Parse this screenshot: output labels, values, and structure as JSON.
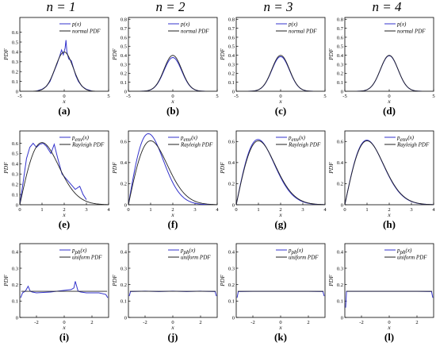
{
  "column_headers": [
    "n = 1",
    "n = 2",
    "n = 3",
    "n = 4"
  ],
  "colors": {
    "estimate": "#3333cc",
    "reference": "#222222",
    "frame": "#000000"
  },
  "chart_data": [
    {
      "type": "line",
      "panel_label": "(a)",
      "row": 0,
      "col": 0,
      "xlabel": "x",
      "ylabel": "PDF",
      "xlim": [
        -5,
        5
      ],
      "ylim": [
        0,
        0.75
      ],
      "xticks": [
        -5,
        0,
        5
      ],
      "yticks": [
        0,
        0.1,
        0.2,
        0.3,
        0.4,
        0.5,
        0.6
      ],
      "legend": [
        "p(x)",
        "normal PDF"
      ],
      "series": [
        {
          "name": "p(x)",
          "color": "#3333cc",
          "x": [
            -3.2,
            -2.5,
            -2.0,
            -1.6,
            -1.2,
            -0.8,
            -0.5,
            -0.3,
            -0.1,
            0.1,
            0.2,
            0.3,
            0.5,
            0.8,
            1.0,
            1.3,
            1.6,
            2.0,
            2.5,
            3.2
          ],
          "y": [
            0.0,
            0.02,
            0.05,
            0.1,
            0.19,
            0.28,
            0.36,
            0.42,
            0.37,
            0.44,
            0.52,
            0.4,
            0.33,
            0.31,
            0.25,
            0.16,
            0.1,
            0.05,
            0.02,
            0.0
          ]
        },
        {
          "name": "normal PDF",
          "color": "#222222",
          "function": "normal"
        }
      ]
    },
    {
      "type": "line",
      "panel_label": "(b)",
      "row": 0,
      "col": 1,
      "xlabel": "x",
      "ylabel": "PDF",
      "xlim": [
        -5,
        5
      ],
      "ylim": [
        0,
        0.82
      ],
      "xticks": [
        -5,
        0,
        5
      ],
      "yticks": [
        0,
        0.1,
        0.2,
        0.3,
        0.4,
        0.5,
        0.6,
        0.7,
        0.8
      ],
      "legend": [
        "p(x)",
        "normal PDF"
      ],
      "series": [
        {
          "name": "p(x)",
          "color": "#3333cc",
          "function": "normal_scaled",
          "peak": 0.375
        },
        {
          "name": "normal PDF",
          "color": "#222222",
          "function": "normal"
        }
      ]
    },
    {
      "type": "line",
      "panel_label": "(c)",
      "row": 0,
      "col": 2,
      "xlabel": "x",
      "ylabel": "PDF",
      "xlim": [
        -5,
        5
      ],
      "ylim": [
        0,
        0.82
      ],
      "xticks": [
        -5,
        0,
        5
      ],
      "yticks": [
        0,
        0.1,
        0.2,
        0.3,
        0.4,
        0.5,
        0.6,
        0.7,
        0.8
      ],
      "legend": [
        "p(x)",
        "normal PDF"
      ],
      "series": [
        {
          "name": "p(x)",
          "color": "#3333cc",
          "function": "normal_scaled",
          "peak": 0.385
        },
        {
          "name": "normal PDF",
          "color": "#222222",
          "function": "normal"
        }
      ]
    },
    {
      "type": "line",
      "panel_label": "(d)",
      "row": 0,
      "col": 3,
      "xlabel": "x",
      "ylabel": "PDF",
      "xlim": [
        -5,
        5
      ],
      "ylim": [
        0,
        0.82
      ],
      "xticks": [
        -5,
        0,
        5
      ],
      "yticks": [
        0,
        0.1,
        0.2,
        0.3,
        0.4,
        0.5,
        0.6,
        0.7,
        0.8
      ],
      "legend": [
        "p(x)",
        "normal PDF"
      ],
      "series": [
        {
          "name": "p(x)",
          "color": "#3333cc",
          "function": "normal_scaled",
          "peak": 0.395
        },
        {
          "name": "normal PDF",
          "color": "#222222",
          "function": "normal"
        }
      ]
    },
    {
      "type": "line",
      "panel_label": "(e)",
      "row": 1,
      "col": 0,
      "xlabel": "x",
      "ylabel": "PDF",
      "xlim": [
        0,
        4
      ],
      "ylim": [
        0,
        0.72
      ],
      "xticks": [
        0,
        1,
        2,
        3,
        4
      ],
      "yticks": [
        0,
        0.1,
        0.2,
        0.3,
        0.4,
        0.5,
        0.6
      ],
      "legend": [
        "p_env(x)",
        "Rayleigh PDF"
      ],
      "series": [
        {
          "name": "p_env(x)",
          "color": "#3333cc",
          "x": [
            0.0,
            0.15,
            0.3,
            0.45,
            0.6,
            0.75,
            0.9,
            1.05,
            1.2,
            1.4,
            1.55,
            1.7,
            1.9,
            2.1,
            2.3,
            2.5,
            2.7,
            2.85,
            3.0
          ],
          "y": [
            0.0,
            0.22,
            0.45,
            0.56,
            0.6,
            0.56,
            0.59,
            0.6,
            0.57,
            0.5,
            0.59,
            0.46,
            0.3,
            0.25,
            0.2,
            0.15,
            0.18,
            0.1,
            0.05
          ]
        },
        {
          "name": "Rayleigh PDF",
          "color": "#222222",
          "function": "rayleigh"
        }
      ]
    },
    {
      "type": "line",
      "panel_label": "(f)",
      "row": 1,
      "col": 1,
      "xlabel": "x",
      "ylabel": "PDF",
      "xlim": [
        0,
        4
      ],
      "ylim": [
        0,
        0.7
      ],
      "xticks": [
        0,
        1,
        2,
        3,
        4
      ],
      "yticks": [
        0,
        0.2,
        0.4,
        0.6
      ],
      "legend": [
        "p_env(x)",
        "Rayleigh PDF"
      ],
      "series": [
        {
          "name": "p_env(x)",
          "color": "#3333cc",
          "function": "rayleigh_scaled",
          "sigma": 0.9
        },
        {
          "name": "Rayleigh PDF",
          "color": "#222222",
          "function": "rayleigh"
        }
      ]
    },
    {
      "type": "line",
      "panel_label": "(g)",
      "row": 1,
      "col": 2,
      "xlabel": "x",
      "ylabel": "PDF",
      "xlim": [
        0,
        4
      ],
      "ylim": [
        0,
        0.7
      ],
      "xticks": [
        0,
        1,
        2,
        3,
        4
      ],
      "yticks": [
        0,
        0.2,
        0.4,
        0.6
      ],
      "legend": [
        "p_env(x)",
        "Rayleigh PDF"
      ],
      "series": [
        {
          "name": "p_env(x)",
          "color": "#3333cc",
          "function": "rayleigh_scaled",
          "sigma": 0.98
        },
        {
          "name": "Rayleigh PDF",
          "color": "#222222",
          "function": "rayleigh"
        }
      ]
    },
    {
      "type": "line",
      "panel_label": "(h)",
      "row": 1,
      "col": 3,
      "xlabel": "x",
      "ylabel": "PDF",
      "xlim": [
        0,
        4
      ],
      "ylim": [
        0,
        0.7
      ],
      "xticks": [
        0,
        1,
        2,
        3,
        4
      ],
      "yticks": [
        0,
        0.2,
        0.4,
        0.6
      ],
      "legend": [
        "p_env(x)",
        "Rayleigh PDF"
      ],
      "series": [
        {
          "name": "p_env(x)",
          "color": "#3333cc",
          "function": "rayleigh_scaled",
          "sigma": 0.99
        },
        {
          "name": "Rayleigh PDF",
          "color": "#222222",
          "function": "rayleigh"
        }
      ]
    },
    {
      "type": "line",
      "panel_label": "(i)",
      "row": 2,
      "col": 0,
      "xlabel": "x",
      "ylabel": "PDF",
      "xlim": [
        -3.2,
        3.2
      ],
      "ylim": [
        0,
        0.45
      ],
      "xticks": [
        -2,
        0,
        2
      ],
      "yticks": [
        0,
        0.1,
        0.2,
        0.3,
        0.4
      ],
      "legend": [
        "p_ph(x)",
        "uniform PDF"
      ],
      "series": [
        {
          "name": "p_ph(x)",
          "color": "#3333cc",
          "x": [
            -3.14,
            -3.0,
            -2.8,
            -2.6,
            -2.45,
            -2.3,
            -2.0,
            -1.0,
            0.0,
            0.5,
            0.7,
            0.8,
            0.9,
            1.0,
            1.2,
            1.6,
            2.5,
            3.0,
            3.14
          ],
          "y": [
            0.12,
            0.15,
            0.16,
            0.19,
            0.16,
            0.155,
            0.15,
            0.155,
            0.165,
            0.17,
            0.18,
            0.22,
            0.19,
            0.16,
            0.155,
            0.15,
            0.15,
            0.14,
            0.12
          ]
        },
        {
          "name": "uniform PDF",
          "color": "#222222",
          "function": "uniform"
        }
      ]
    },
    {
      "type": "line",
      "panel_label": "(j)",
      "row": 2,
      "col": 1,
      "xlabel": "x",
      "ylabel": "PDF",
      "xlim": [
        -3.2,
        3.2
      ],
      "ylim": [
        0,
        0.45
      ],
      "xticks": [
        -2,
        0,
        2
      ],
      "yticks": [
        0,
        0.1,
        0.2,
        0.3,
        0.4
      ],
      "legend": [
        "p_ph(x)",
        "uniform PDF"
      ],
      "series": [
        {
          "name": "p_ph(x)",
          "color": "#3333cc",
          "x": [
            -3.14,
            -3.05,
            -2.0,
            -1.0,
            0.0,
            1.0,
            2.0,
            3.05,
            3.14
          ],
          "y": [
            0.13,
            0.158,
            0.16,
            0.158,
            0.16,
            0.158,
            0.16,
            0.158,
            0.13
          ]
        },
        {
          "name": "uniform PDF",
          "color": "#222222",
          "function": "uniform"
        }
      ]
    },
    {
      "type": "line",
      "panel_label": "(k)",
      "row": 2,
      "col": 2,
      "xlabel": "x",
      "ylabel": "PDF",
      "xlim": [
        -3.2,
        3.2
      ],
      "ylim": [
        0,
        0.45
      ],
      "xticks": [
        -2,
        0,
        2
      ],
      "yticks": [
        0,
        0.1,
        0.2,
        0.3,
        0.4
      ],
      "legend": [
        "p_ph(x)",
        "uniform PDF"
      ],
      "series": [
        {
          "name": "p_ph(x)",
          "color": "#3333cc",
          "x": [
            -3.14,
            -3.05,
            -2.0,
            -1.0,
            0.0,
            1.0,
            2.0,
            3.05,
            3.14
          ],
          "y": [
            0.12,
            0.158,
            0.159,
            0.159,
            0.159,
            0.159,
            0.159,
            0.158,
            0.13
          ]
        },
        {
          "name": "uniform PDF",
          "color": "#222222",
          "function": "uniform"
        }
      ]
    },
    {
      "type": "line",
      "panel_label": "(l)",
      "row": 2,
      "col": 3,
      "xlabel": "x",
      "ylabel": "PDF",
      "xlim": [
        -3.2,
        3.2
      ],
      "ylim": [
        0,
        0.45
      ],
      "xticks": [
        -2,
        0,
        2
      ],
      "yticks": [
        0,
        0.1,
        0.2,
        0.3,
        0.4
      ],
      "legend": [
        "p_ph(x)",
        "uniform PDF"
      ],
      "series": [
        {
          "name": "p_ph(x)",
          "color": "#3333cc",
          "x": [
            -3.14,
            -3.08,
            -2.0,
            -1.0,
            0.0,
            1.0,
            2.0,
            3.05,
            3.14
          ],
          "y": [
            0.06,
            0.159,
            0.159,
            0.159,
            0.159,
            0.159,
            0.159,
            0.158,
            0.12
          ]
        },
        {
          "name": "uniform PDF",
          "color": "#222222",
          "function": "uniform"
        }
      ]
    }
  ]
}
